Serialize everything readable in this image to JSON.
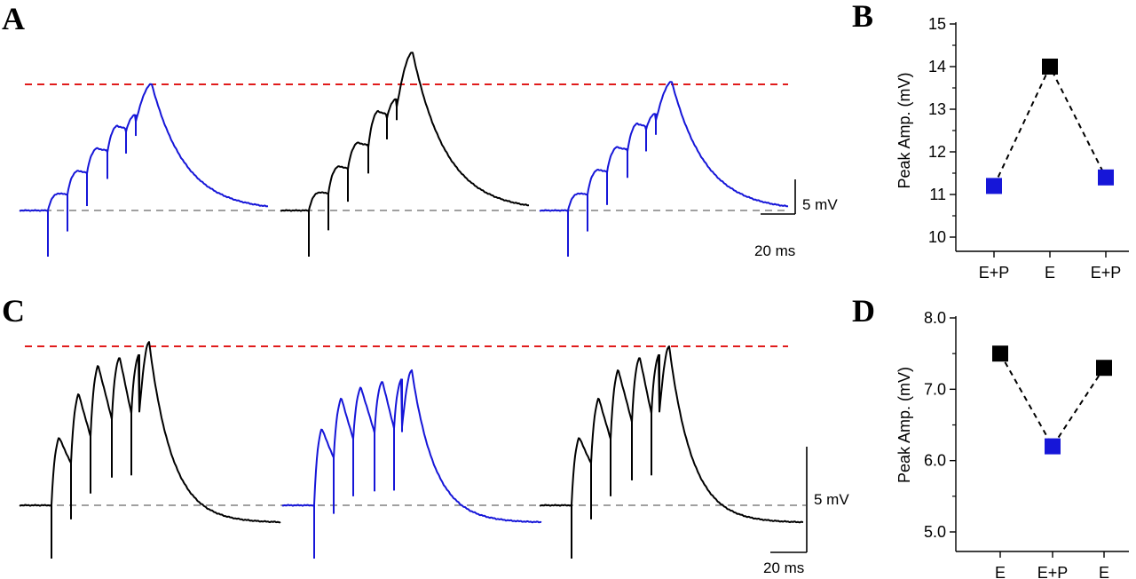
{
  "panels": {
    "A": "A",
    "B": "B",
    "C": "C",
    "D": "D"
  },
  "colors": {
    "blue": "#1616d8",
    "black": "#000000",
    "threshold": "#e01b1b",
    "baseline": "#a0a0a0"
  },
  "scale_bars": {
    "A": {
      "voltage": "5 mV",
      "time": "20 ms"
    },
    "C": {
      "voltage": "5 mV",
      "time": "20 ms"
    }
  },
  "chart_data": [
    {
      "panel": "A",
      "type": "line",
      "description_units": "mV relative to baseline vs ms",
      "traces": [
        {
          "condition": "E+P",
          "color": "blue",
          "epsp_peaks": [
            1.5,
            3.5,
            5.5,
            7.5,
            8.5,
            10.0
          ],
          "final_peak": 11.2
        },
        {
          "condition": "E",
          "color": "black",
          "epsp_peaks": [
            1.6,
            3.9,
            6.0,
            8.8,
            9.9,
            11.5
          ],
          "final_peak": 14.0
        },
        {
          "condition": "E+P",
          "color": "blue",
          "epsp_peaks": [
            1.5,
            3.6,
            5.6,
            7.7,
            8.6,
            10.0
          ],
          "final_peak": 11.4
        }
      ]
    },
    {
      "panel": "B",
      "type": "scatter",
      "categories": [
        "E+P",
        "E",
        "E+P"
      ],
      "values": [
        11.2,
        14.0,
        11.4
      ],
      "point_colors": [
        "blue",
        "black",
        "blue"
      ],
      "ylabel": "Peak Amp. (mV)",
      "ylim": [
        10,
        15
      ],
      "yticks": [
        10,
        11,
        12,
        13,
        14,
        15
      ],
      "ytick_labels": [
        "10.0",
        "11.0",
        "12.0",
        "13.0",
        "14.0",
        "15.0"
      ],
      "ytick_labels_display": [
        "10",
        "11",
        "12",
        "13",
        "14",
        "15"
      ],
      "connector": "dashed"
    },
    {
      "panel": "C",
      "type": "line",
      "description_units": "mV relative to baseline vs ms",
      "traces": [
        {
          "condition": "E",
          "color": "black",
          "epsp_peaks": [
            3.1,
            5.1,
            6.4,
            6.8
          ],
          "final_peak": 7.5
        },
        {
          "condition": "E+P",
          "color": "blue",
          "epsp_peaks": [
            3.5,
            4.9,
            5.4,
            5.7
          ],
          "final_peak": 6.2
        },
        {
          "condition": "E",
          "color": "black",
          "epsp_peaks": [
            3.1,
            4.9,
            6.2,
            6.8
          ],
          "final_peak": 7.3
        }
      ]
    },
    {
      "panel": "D",
      "type": "scatter",
      "categories": [
        "E",
        "E+P",
        "E"
      ],
      "values": [
        7.5,
        6.2,
        7.3
      ],
      "point_colors": [
        "black",
        "blue",
        "black"
      ],
      "ylabel": "Peak Amp. (mV)",
      "ylim": [
        5,
        8
      ],
      "yticks": [
        5,
        6,
        7,
        8
      ],
      "ytick_labels_display": [
        "5.0",
        "6.0",
        "7.0",
        "8.0"
      ],
      "connector": "dashed"
    }
  ]
}
